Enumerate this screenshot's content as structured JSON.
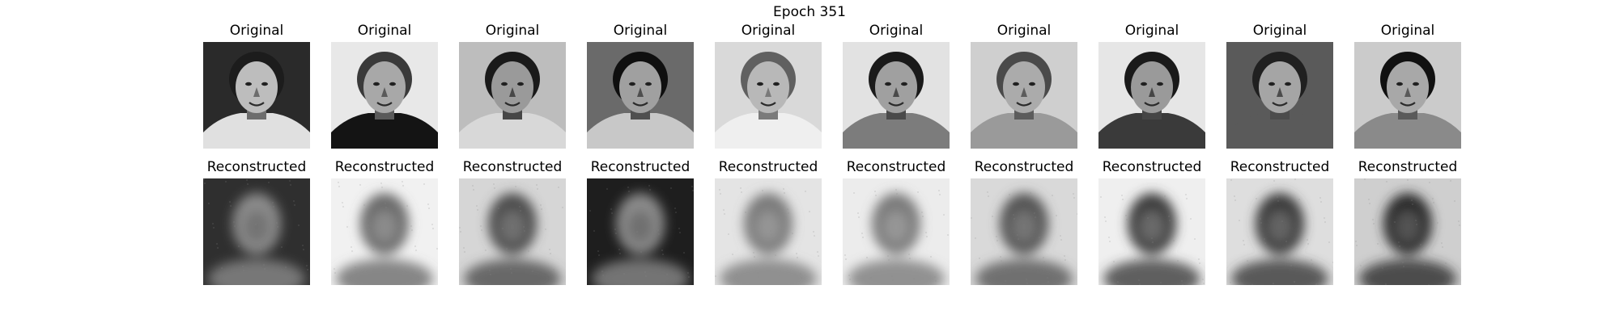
{
  "figure": {
    "title": "Epoch 351",
    "row_original_label": "Original",
    "row_reconstructed_label": "Reconstructed"
  },
  "samples": [
    {
      "original": {
        "tone": "#6d6d6d",
        "face": "#bdbdbd",
        "hair": "#1c1c1c",
        "clothes": "#e0e0e0",
        "bg": "#2a2a2a"
      },
      "reconstructed": {
        "bg": "#2f2f2f",
        "face": "#8a8a8a"
      }
    },
    {
      "original": {
        "tone": "#5a5a5a",
        "face": "#a8a8a8",
        "hair": "#3a3a3a",
        "clothes": "#141414",
        "bg": "#e8e8e8"
      },
      "reconstructed": {
        "bg": "#f1f1f1",
        "face": "#6a6a6a"
      }
    },
    {
      "original": {
        "tone": "#474747",
        "face": "#9a9a9a",
        "hair": "#1a1a1a",
        "clothes": "#d8d8d8",
        "bg": "#bdbdbd"
      },
      "reconstructed": {
        "bg": "#d6d6d6",
        "face": "#4d4d4d"
      }
    },
    {
      "original": {
        "tone": "#4f4f4f",
        "face": "#a0a0a0",
        "hair": "#0f0f0f",
        "clothes": "#c8c8c8",
        "bg": "#6a6a6a"
      },
      "reconstructed": {
        "bg": "#1e1e1e",
        "face": "#8a8a8a"
      }
    },
    {
      "original": {
        "tone": "#7a7a7a",
        "face": "#b8b8b8",
        "hair": "#606060",
        "clothes": "#efefef",
        "bg": "#d9d9d9"
      },
      "reconstructed": {
        "bg": "#e4e4e4",
        "face": "#7a7a7a"
      }
    },
    {
      "original": {
        "tone": "#4a4a4a",
        "face": "#a0a0a0",
        "hair": "#1a1a1a",
        "clothes": "#7c7c7c",
        "bg": "#e2e2e2"
      },
      "reconstructed": {
        "bg": "#ececec",
        "face": "#7a7a7a"
      }
    },
    {
      "original": {
        "tone": "#5c5c5c",
        "face": "#ababab",
        "hair": "#4a4a4a",
        "clothes": "#9a9a9a",
        "bg": "#cfcfcf"
      },
      "reconstructed": {
        "bg": "#d9d9d9",
        "face": "#555555"
      }
    },
    {
      "original": {
        "tone": "#454545",
        "face": "#9a9a9a",
        "hair": "#1a1a1a",
        "clothes": "#3a3a3a",
        "bg": "#e6e6e6"
      },
      "reconstructed": {
        "bg": "#efefef",
        "face": "#3c3c3c"
      }
    },
    {
      "original": {
        "tone": "#4c4c4c",
        "face": "#a5a5a5",
        "hair": "#202020",
        "clothes": "#5a5a5a",
        "bg": "#5a5a5a"
      },
      "reconstructed": {
        "bg": "#dedede",
        "face": "#3a3a3a"
      }
    },
    {
      "original": {
        "tone": "#5a5a5a",
        "face": "#a8a8a8",
        "hair": "#111111",
        "clothes": "#8a8a8a",
        "bg": "#cbcbcb"
      },
      "reconstructed": {
        "bg": "#cfcfcf",
        "face": "#2a2a2a"
      }
    }
  ]
}
